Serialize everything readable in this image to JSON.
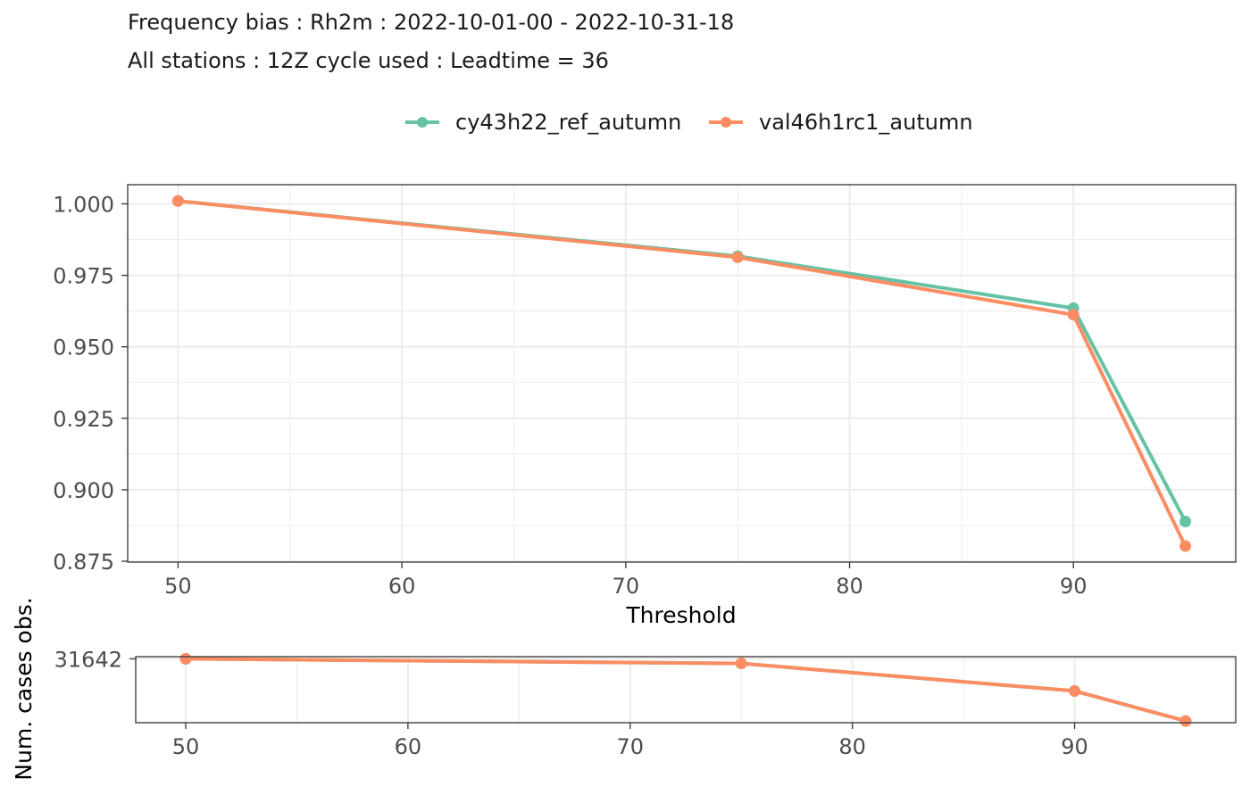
{
  "title": "Frequency bias : Rh2m : 2022-10-01-00 - 2022-10-31-18",
  "subtitle": "All stations : 12Z cycle used : Leadtime = 36",
  "colors": {
    "series1": "#66C2A5",
    "series2": "#FC8D62",
    "panel_border": "#333333",
    "grid": "#EBEBEB",
    "tick_text": "#4D4D4D"
  },
  "chart_data": [
    {
      "type": "line",
      "xlabel": "Threshold",
      "ylabel": "",
      "x": [
        50,
        75,
        90,
        95
      ],
      "xlim": [
        47.75,
        97.25
      ],
      "ylim": [
        0.8747,
        1.0067
      ],
      "x_ticks": [
        50,
        60,
        70,
        80,
        90
      ],
      "y_ticks": [
        0.875,
        0.9,
        0.925,
        0.95,
        0.975,
        1.0
      ],
      "x_tick_labels": [
        "50",
        "60",
        "70",
        "80",
        "90"
      ],
      "y_tick_labels": [
        "0.875",
        "0.900",
        "0.925",
        "0.950",
        "0.975",
        "1.000"
      ],
      "legend_position": "top",
      "grid": true,
      "series": [
        {
          "name": "cy43h22_ref_autumn",
          "values": [
            1.001,
            0.9817,
            0.9635,
            0.8889
          ]
        },
        {
          "name": "val46h1rc1_autumn",
          "values": [
            1.001,
            0.9813,
            0.9612,
            0.8803
          ]
        }
      ]
    },
    {
      "type": "line",
      "xlabel": "",
      "ylabel": "Num. cases obs.",
      "x": [
        50,
        75,
        90,
        95
      ],
      "xlim": [
        47.75,
        97.25
      ],
      "ylim": [
        8900,
        32400
      ],
      "x_ticks": [
        50,
        60,
        70,
        80,
        90
      ],
      "y_ticks": [
        31642
      ],
      "x_tick_labels": [
        "50",
        "60",
        "70",
        "80",
        "90"
      ],
      "y_tick_labels": [
        "31642"
      ],
      "grid": true,
      "series": [
        {
          "name": "cy43h22_ref_autumn",
          "values": [
            31642,
            30000,
            20200,
            9500
          ]
        },
        {
          "name": "val46h1rc1_autumn",
          "values": [
            31642,
            30000,
            20200,
            9500
          ]
        }
      ]
    }
  ]
}
